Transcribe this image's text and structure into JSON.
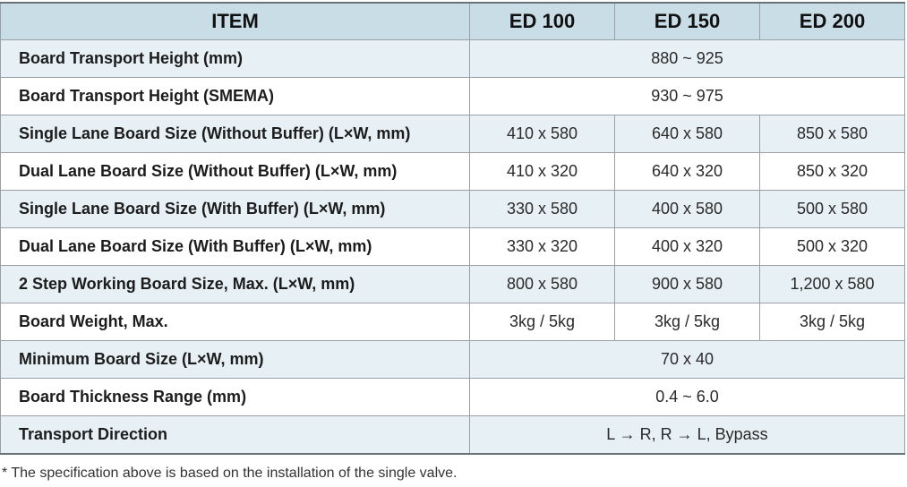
{
  "table": {
    "headers": [
      "ITEM",
      "ED 100",
      "ED 150",
      "ED 200"
    ],
    "rows": [
      {
        "label": "Board Transport Height (mm)",
        "values": [
          "880 ~ 925"
        ]
      },
      {
        "label": "Board Transport Height (SMEMA)",
        "values": [
          "930 ~ 975"
        ]
      },
      {
        "label": "Single Lane Board Size (Without Buffer) (L×W, mm)",
        "values": [
          "410 x 580",
          "640 x 580",
          "850 x 580"
        ]
      },
      {
        "label": "Dual Lane Board Size    (Without Buffer) (L×W, mm)",
        "values": [
          "410 x 320",
          "640 x 320",
          "850 x 320"
        ]
      },
      {
        "label": "Single Lane Board Size (With Buffer) (L×W, mm)",
        "values": [
          "330 x 580",
          "400 x 580",
          "500 x 580"
        ]
      },
      {
        "label": "Dual Lane Board Size    (With Buffer) (L×W, mm)",
        "values": [
          "330 x 320",
          "400 x 320",
          "500 x 320"
        ]
      },
      {
        "label": "2 Step Working Board Size, Max. (L×W, mm)",
        "values": [
          "800 x 580",
          "900 x 580",
          "1,200 x 580"
        ]
      },
      {
        "label": "Board Weight, Max.",
        "values": [
          "3kg / 5kg",
          "3kg / 5kg",
          "3kg / 5kg"
        ]
      },
      {
        "label": "Minimum Board Size (L×W, mm)",
        "values": [
          "70 x 40"
        ]
      },
      {
        "label": "Board Thickness Range (mm)",
        "values": [
          "0.4 ~ 6.0"
        ]
      },
      {
        "label": "Transport Direction",
        "values": [
          "L → R,   R → L,  Bypass"
        ]
      }
    ]
  },
  "footnote": "* The specification above is based on the installation of the single valve."
}
